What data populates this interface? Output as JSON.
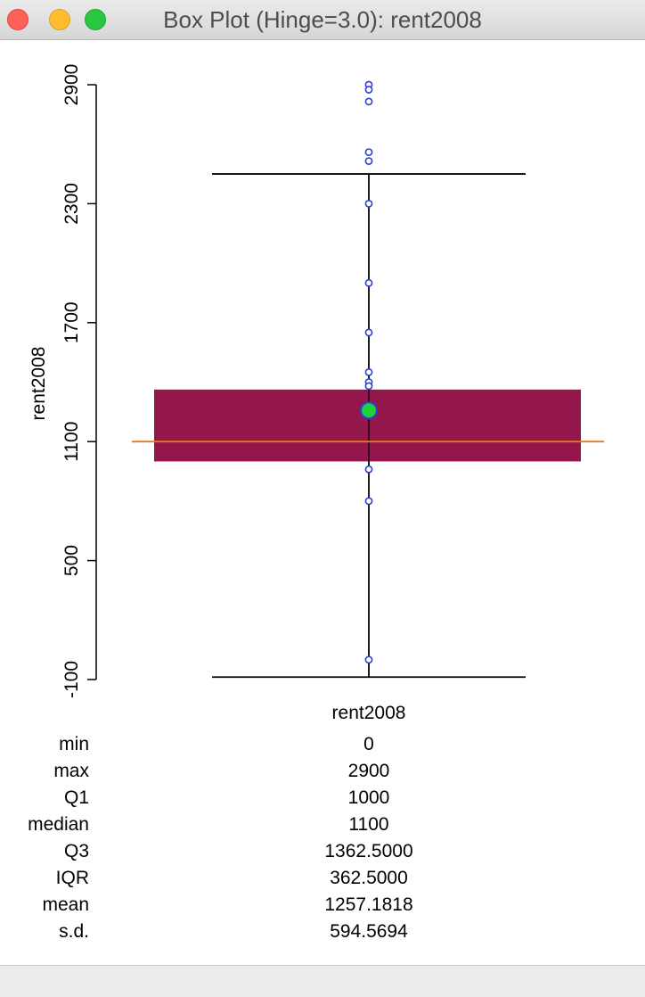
{
  "window": {
    "title": "Box Plot (Hinge=3.0): rent2008"
  },
  "colors": {
    "box_fill": "#94174c",
    "median_line": "#e8761a",
    "whisker": "#000000",
    "outlier_stroke": "#2a3fd6",
    "mean_fill": "#22d03a",
    "mean_stroke": "#2a3fd6"
  },
  "chart_data": {
    "type": "box",
    "title": "",
    "xlabel": "rent2008",
    "ylabel": "rent2008",
    "ylim": [
      -100,
      2900
    ],
    "yticks": [
      -100,
      500,
      1100,
      1700,
      2300,
      2900
    ],
    "ytick_labels": [
      "-100",
      "500",
      "1100",
      "1700",
      "2300",
      "2900"
    ],
    "hinge": 3.0,
    "series": [
      {
        "q1": 1000,
        "median": 1100,
        "q3": 1362.5,
        "mean": 1257.1818,
        "lower_whisker": -87.5,
        "upper_whisker": 2450,
        "points": [
          2900,
          2875,
          2815,
          2560,
          2515,
          2300,
          1900,
          1650,
          1450,
          1400,
          1380,
          960,
          800,
          0
        ]
      }
    ]
  },
  "stats": [
    {
      "label": "min",
      "value": "0"
    },
    {
      "label": "max",
      "value": "2900"
    },
    {
      "label": "Q1",
      "value": "1000"
    },
    {
      "label": "median",
      "value": "1100"
    },
    {
      "label": "Q3",
      "value": "1362.5000"
    },
    {
      "label": "IQR",
      "value": "362.5000"
    },
    {
      "label": "mean",
      "value": "1257.1818"
    },
    {
      "label": "s.d.",
      "value": "594.5694"
    }
  ]
}
